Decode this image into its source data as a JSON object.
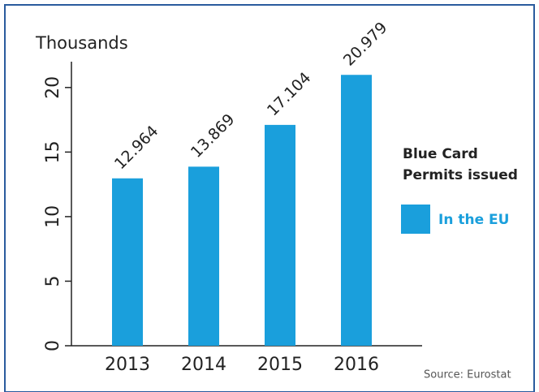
{
  "chart_data": {
    "type": "bar",
    "y_axis_label": "Thousands",
    "categories": [
      "2013",
      "2014",
      "2015",
      "2016"
    ],
    "series": [
      {
        "name": "In the EU",
        "color": "#1a9fdc",
        "values": [
          12.964,
          13.869,
          17.104,
          20.979
        ]
      }
    ],
    "ylim": [
      0,
      22
    ],
    "yticks": [
      0,
      5,
      10,
      15,
      20
    ],
    "legend_title": [
      "Blue Card",
      "Permits issued"
    ],
    "legend_position": "right",
    "source": "Source: Eurostat"
  }
}
